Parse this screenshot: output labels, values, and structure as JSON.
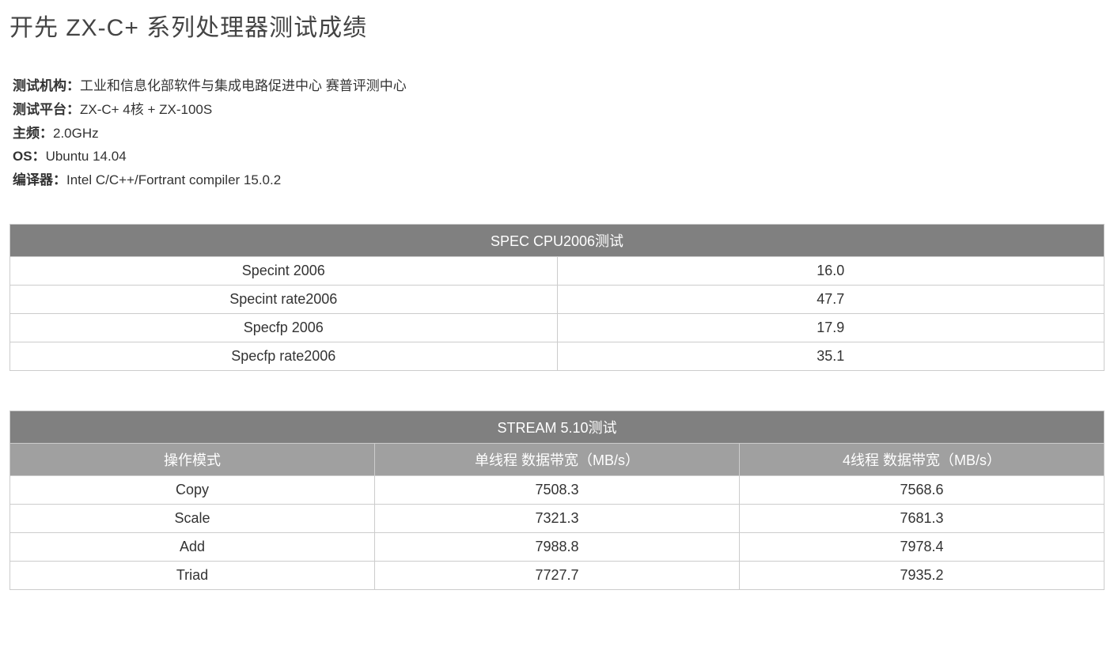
{
  "title": "开先 ZX-C+ 系列处理器测试成绩",
  "meta": {
    "org_label": "测试机构：",
    "org_value": "工业和信息化部软件与集成电路促进中心 赛普评测中心",
    "platform_label": "测试平台：",
    "platform_value": "ZX-C+ 4核 + ZX-100S",
    "freq_label": "主频：",
    "freq_value": "2.0GHz",
    "os_label": "OS：",
    "os_value": "Ubuntu 14.04",
    "compiler_label": "编译器：",
    "compiler_value": "Intel C/C++/Fortrant compiler 15.0.2"
  },
  "table_spec": {
    "title": "SPEC CPU2006测试",
    "rows": [
      {
        "metric": "Specint 2006",
        "value": "16.0"
      },
      {
        "metric": "Specint rate2006",
        "value": "47.7"
      },
      {
        "metric": "Specfp 2006",
        "value": "17.9"
      },
      {
        "metric": "Specfp rate2006",
        "value": "35.1"
      }
    ]
  },
  "table_stream": {
    "title": "STREAM 5.10测试",
    "columns": [
      "操作模式",
      "单线程 数据带宽（MB/s）",
      "4线程 数据带宽（MB/s）"
    ],
    "rows": [
      {
        "mode": "Copy",
        "single": "7508.3",
        "quad": "7568.6"
      },
      {
        "mode": "Scale",
        "single": "7321.3",
        "quad": "7681.3"
      },
      {
        "mode": "Add",
        "single": "7988.8",
        "quad": "7978.4"
      },
      {
        "mode": "Triad",
        "single": "7727.7",
        "quad": "7935.2"
      }
    ]
  },
  "style": {
    "header_bg": "#808080",
    "subhead_bg": "#a0a0a0",
    "header_fg": "#ffffff",
    "border_color": "#cccccc",
    "text_color": "#333333",
    "background": "#ffffff"
  }
}
